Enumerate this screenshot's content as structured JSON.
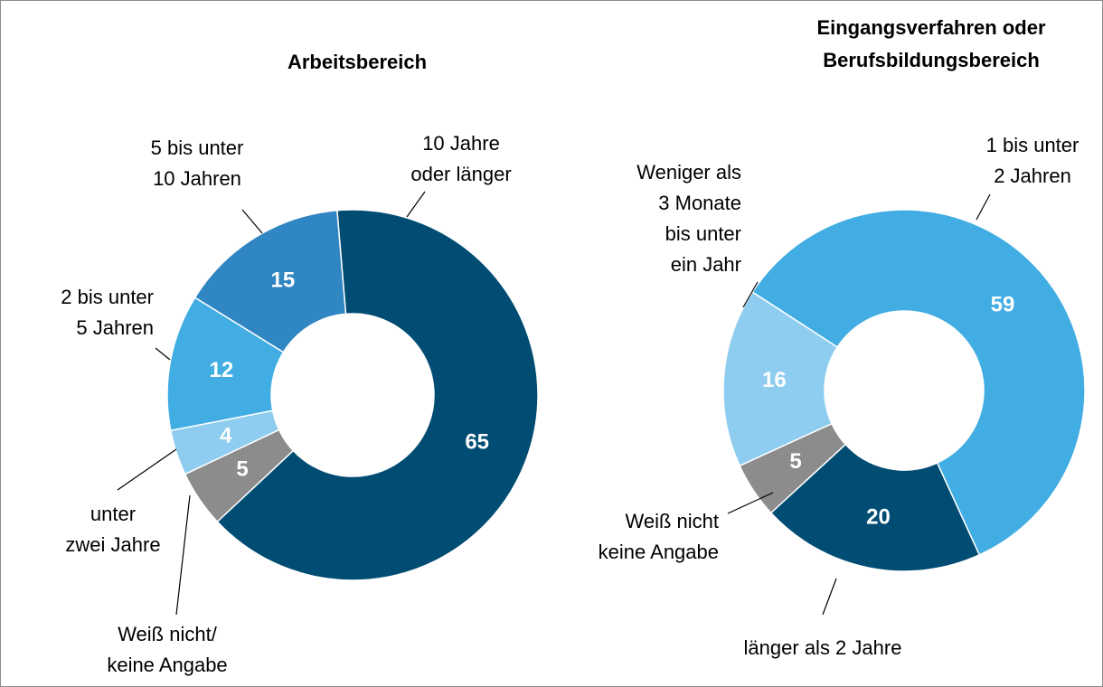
{
  "chart_data": [
    {
      "type": "donut",
      "title": [
        "Arbeitsbereich"
      ],
      "categories": [
        [
          "10 Jahre",
          "oder länger"
        ],
        [
          "Weiß nicht/",
          "keine Angabe"
        ],
        [
          "unter",
          "zwei Jahre"
        ],
        [
          "2 bis unter",
          "5 Jahren"
        ],
        [
          "5 bis unter",
          "10 Jahren"
        ]
      ],
      "values": [
        65,
        5,
        4,
        12,
        15
      ],
      "colors": [
        "#004c73",
        "#8c8c8c",
        "#8ecdef",
        "#41ade2",
        "#2f86c2"
      ]
    },
    {
      "type": "donut",
      "title": [
        "Eingangsverfahren oder",
        "Berufsbildungsbereich"
      ],
      "categories": [
        [
          "1 bis unter",
          "2 Jahren"
        ],
        [
          "länger als 2 Jahre"
        ],
        [
          "Weiß nicht",
          "keine Angabe"
        ],
        [
          "Weniger als",
          "3 Monate",
          "bis unter",
          "ein Jahr"
        ]
      ],
      "values": [
        59,
        20,
        5,
        16
      ],
      "colors": [
        "#41ade2",
        "#004c73",
        "#8c8c8c",
        "#8ecdef"
      ]
    }
  ]
}
